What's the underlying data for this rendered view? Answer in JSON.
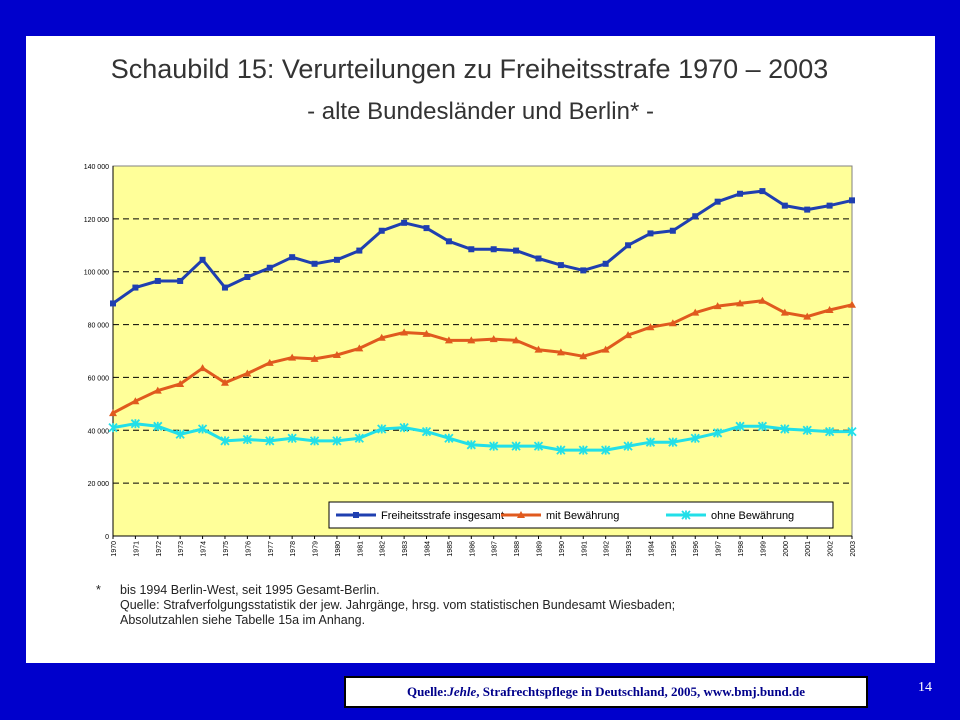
{
  "slide": {
    "title_line1": "Schaubild 15: Verurteilungen zu Freiheitsstrafe 1970 – 2003",
    "title_line2": "- alte Bundesländer und Berlin* -",
    "footnote_marker": "*",
    "footnote_line1": "bis 1994 Berlin-West, seit 1995 Gesamt-Berlin.",
    "footnote_line2": "Quelle: Strafverfolgungsstatistik der jew. Jahrgänge, hrsg. vom statistischen Bundesamt Wiesbaden;",
    "footnote_line3": "Absolutzahlen siehe Tabelle 15a im Anhang.",
    "source_prefix": "Quelle: ",
    "source_author": "Jehle",
    "source_rest": ", Strafrechtspflege in Deutschland, 2005, www.bmj.bund.de",
    "page_number": "14"
  },
  "colors": {
    "background": "#0000cc",
    "plot_area": "#ffff99",
    "series_total": "#1f3fb0",
    "series_with_probation": "#e05a1e",
    "series_without_probation": "#22dfe8"
  },
  "chart_data": {
    "type": "line",
    "x": [
      "1970",
      "1971",
      "1972",
      "1973",
      "1974",
      "1975",
      "1976",
      "1977",
      "1978",
      "1979",
      "1980",
      "1981",
      "1982",
      "1983",
      "1984",
      "1985",
      "1986",
      "1987",
      "1988",
      "1989",
      "1990",
      "1991",
      "1992",
      "1993",
      "1994",
      "1995",
      "1996",
      "1997",
      "1998",
      "1999",
      "2000",
      "2001",
      "2002",
      "2003"
    ],
    "ylim": [
      0,
      140000
    ],
    "yticks": [
      0,
      20000,
      40000,
      60000,
      80000,
      100000,
      120000,
      140000
    ],
    "ytick_labels": [
      "0",
      "20 000",
      "40 000",
      "60 000",
      "80 000",
      "100 000",
      "120 000",
      "140 000"
    ],
    "grid": "horizontal dashed",
    "legend_position": "bottom-right",
    "series": [
      {
        "name": "Freiheitsstrafe insgesamt",
        "marker": "square",
        "values": [
          88000,
          94000,
          96500,
          96500,
          104500,
          94000,
          98000,
          101500,
          105500,
          103000,
          104500,
          108000,
          115500,
          118500,
          116500,
          111500,
          108500,
          108500,
          108000,
          105000,
          102500,
          100500,
          103000,
          110000,
          114500,
          115500,
          121000,
          126500,
          129500,
          130500,
          125000,
          123500,
          125000,
          127000
        ]
      },
      {
        "name": "mit Bewährung",
        "marker": "triangle",
        "values": [
          46500,
          51000,
          55000,
          57500,
          63500,
          58000,
          61500,
          65500,
          67500,
          67000,
          68500,
          71000,
          75000,
          77000,
          76500,
          74000,
          74000,
          74500,
          74000,
          70500,
          69500,
          68000,
          70500,
          76000,
          79000,
          80500,
          84500,
          87000,
          88000,
          89000,
          84500,
          83000,
          85500,
          87500
        ]
      },
      {
        "name": "ohne Bewährung",
        "marker": "star",
        "values": [
          41000,
          42500,
          41500,
          38500,
          40500,
          36000,
          36500,
          36000,
          37000,
          36000,
          36000,
          37000,
          40500,
          41000,
          39500,
          37000,
          34500,
          34000,
          34000,
          34000,
          32500,
          32500,
          32500,
          34000,
          35500,
          35500,
          37000,
          39000,
          41500,
          41500,
          40500,
          40000,
          39500,
          39500
        ]
      }
    ]
  }
}
